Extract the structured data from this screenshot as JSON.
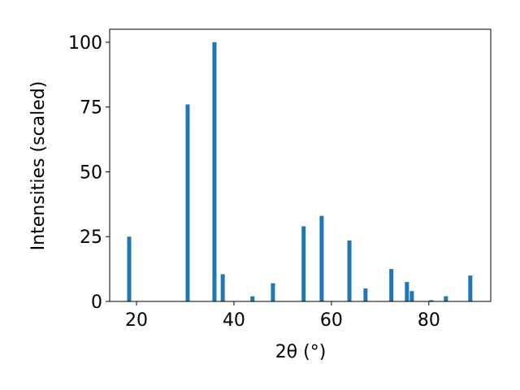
{
  "chart_data": {
    "type": "bar",
    "x": [
      18.5,
      30.5,
      36.0,
      37.7,
      43.8,
      48.0,
      54.3,
      58.0,
      63.7,
      67.0,
      72.3,
      75.5,
      76.5,
      80.5,
      83.5,
      88.5
    ],
    "values": [
      25,
      76,
      100,
      10.5,
      2,
      7,
      29,
      33,
      23.5,
      5,
      12.5,
      7.5,
      4,
      0.5,
      2,
      10
    ],
    "color": "#1f77b4",
    "xlabel": "2θ (°)",
    "ylabel": "Intensities (scaled)",
    "xlim": [
      14.5,
      92.7
    ],
    "ylim": [
      0,
      105
    ],
    "xticks": [
      20,
      40,
      60,
      80
    ],
    "yticks": [
      0,
      25,
      50,
      75,
      100
    ]
  }
}
